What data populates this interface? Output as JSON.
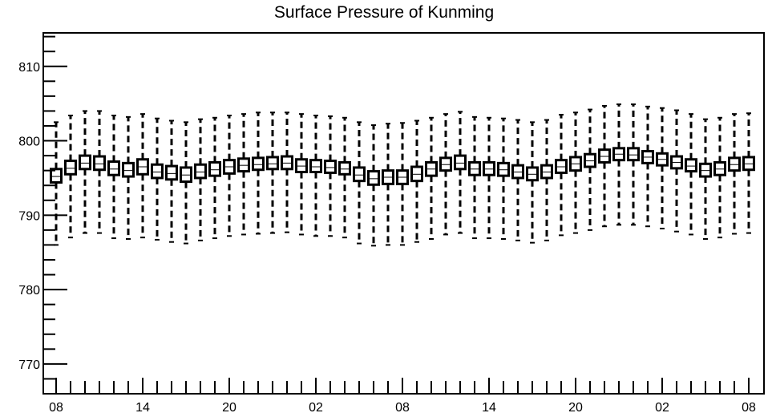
{
  "chart_data": {
    "type": "box",
    "title": "Surface Pressure of Kunming",
    "xlabel": "",
    "ylabel": "",
    "ylim": [
      766,
      814.5
    ],
    "y_ticks": [
      770,
      780,
      790,
      800,
      810
    ],
    "x_tick_labels": [
      "08",
      "14",
      "20",
      "02",
      "08",
      "14",
      "20",
      "02",
      "08"
    ],
    "x_tick_positions": [
      0,
      6,
      12,
      18,
      24,
      30,
      36,
      42,
      48
    ],
    "grid": false,
    "series": [
      {
        "boxes": [
          {
            "t": 0,
            "whisker_low": 786.0,
            "q1": 794.4,
            "median": 795.2,
            "q3": 796.2,
            "whisker_high": 802.5
          },
          {
            "t": 1,
            "whisker_low": 787.0,
            "q1": 795.5,
            "median": 796.3,
            "q3": 797.3,
            "whisker_high": 803.4
          },
          {
            "t": 2,
            "whisker_low": 787.6,
            "q1": 796.2,
            "median": 797.0,
            "q3": 798.0,
            "whisker_high": 804.0
          },
          {
            "t": 3,
            "whisker_low": 787.6,
            "q1": 796.1,
            "median": 796.9,
            "q3": 797.9,
            "whisker_high": 804.0
          },
          {
            "t": 4,
            "whisker_low": 786.9,
            "q1": 795.4,
            "median": 796.2,
            "q3": 797.2,
            "whisker_high": 803.4
          },
          {
            "t": 5,
            "whisker_low": 786.8,
            "q1": 795.2,
            "median": 796.0,
            "q3": 797.0,
            "whisker_high": 803.2
          },
          {
            "t": 6,
            "whisker_low": 787.0,
            "q1": 795.5,
            "median": 796.5,
            "q3": 797.5,
            "whisker_high": 803.6
          },
          {
            "t": 7,
            "whisker_low": 786.7,
            "q1": 795.0,
            "median": 795.8,
            "q3": 796.8,
            "whisker_high": 803.0
          },
          {
            "t": 8,
            "whisker_low": 786.4,
            "q1": 794.8,
            "median": 795.6,
            "q3": 796.6,
            "whisker_high": 802.7
          },
          {
            "t": 9,
            "whisker_low": 786.2,
            "q1": 794.5,
            "median": 795.4,
            "q3": 796.4,
            "whisker_high": 802.5
          },
          {
            "t": 10,
            "whisker_low": 786.6,
            "q1": 795.0,
            "median": 795.8,
            "q3": 796.8,
            "whisker_high": 802.9
          },
          {
            "t": 11,
            "whisker_low": 786.9,
            "q1": 795.3,
            "median": 796.1,
            "q3": 797.1,
            "whisker_high": 803.1
          },
          {
            "t": 12,
            "whisker_low": 787.2,
            "q1": 795.6,
            "median": 796.5,
            "q3": 797.4,
            "whisker_high": 803.4
          },
          {
            "t": 13,
            "whisker_low": 787.4,
            "q1": 795.9,
            "median": 796.7,
            "q3": 797.6,
            "whisker_high": 803.6
          },
          {
            "t": 14,
            "whisker_low": 787.5,
            "q1": 796.1,
            "median": 796.8,
            "q3": 797.7,
            "whisker_high": 803.8
          },
          {
            "t": 15,
            "whisker_low": 787.6,
            "q1": 796.2,
            "median": 796.9,
            "q3": 797.8,
            "whisker_high": 803.8
          },
          {
            "t": 16,
            "whisker_low": 787.7,
            "q1": 796.2,
            "median": 797.0,
            "q3": 797.9,
            "whisker_high": 803.8
          },
          {
            "t": 17,
            "whisker_low": 787.4,
            "q1": 795.8,
            "median": 796.6,
            "q3": 797.5,
            "whisker_high": 803.6
          },
          {
            "t": 18,
            "whisker_low": 787.2,
            "q1": 795.8,
            "median": 796.5,
            "q3": 797.4,
            "whisker_high": 803.4
          },
          {
            "t": 19,
            "whisker_low": 787.2,
            "q1": 795.7,
            "median": 796.4,
            "q3": 797.3,
            "whisker_high": 803.3
          },
          {
            "t": 20,
            "whisker_low": 787.0,
            "q1": 795.5,
            "median": 796.2,
            "q3": 797.1,
            "whisker_high": 803.1
          },
          {
            "t": 21,
            "whisker_low": 786.2,
            "q1": 794.6,
            "median": 795.4,
            "q3": 796.4,
            "whisker_high": 802.5
          },
          {
            "t": 22,
            "whisker_low": 785.9,
            "q1": 794.1,
            "median": 794.9,
            "q3": 795.9,
            "whisker_high": 802.1
          },
          {
            "t": 23,
            "whisker_low": 786.0,
            "q1": 794.2,
            "median": 795.1,
            "q3": 796.0,
            "whisker_high": 802.3
          },
          {
            "t": 24,
            "whisker_low": 786.0,
            "q1": 794.2,
            "median": 795.1,
            "q3": 796.0,
            "whisker_high": 802.4
          },
          {
            "t": 25,
            "whisker_low": 786.4,
            "q1": 794.6,
            "median": 795.5,
            "q3": 796.5,
            "whisker_high": 802.7
          },
          {
            "t": 26,
            "whisker_low": 786.8,
            "q1": 795.3,
            "median": 796.2,
            "q3": 797.1,
            "whisker_high": 803.1
          },
          {
            "t": 27,
            "whisker_low": 787.4,
            "q1": 796.0,
            "median": 796.8,
            "q3": 797.7,
            "whisker_high": 803.6
          },
          {
            "t": 28,
            "whisker_low": 787.6,
            "q1": 796.2,
            "median": 797.0,
            "q3": 798.0,
            "whisker_high": 803.9
          },
          {
            "t": 29,
            "whisker_low": 786.9,
            "q1": 795.4,
            "median": 796.2,
            "q3": 797.1,
            "whisker_high": 803.2
          },
          {
            "t": 30,
            "whisker_low": 786.9,
            "q1": 795.4,
            "median": 796.2,
            "q3": 797.1,
            "whisker_high": 803.1
          },
          {
            "t": 31,
            "whisker_low": 786.8,
            "q1": 795.3,
            "median": 796.1,
            "q3": 797.0,
            "whisker_high": 803.0
          },
          {
            "t": 32,
            "whisker_low": 786.6,
            "q1": 795.0,
            "median": 795.8,
            "q3": 796.7,
            "whisker_high": 802.8
          },
          {
            "t": 33,
            "whisker_low": 786.3,
            "q1": 794.7,
            "median": 795.5,
            "q3": 796.4,
            "whisker_high": 802.5
          },
          {
            "t": 34,
            "whisker_low": 786.6,
            "q1": 795.0,
            "median": 795.8,
            "q3": 796.7,
            "whisker_high": 802.8
          },
          {
            "t": 35,
            "whisker_low": 787.3,
            "q1": 795.7,
            "median": 796.5,
            "q3": 797.4,
            "whisker_high": 803.5
          },
          {
            "t": 36,
            "whisker_low": 787.6,
            "q1": 796.0,
            "median": 796.9,
            "q3": 797.8,
            "whisker_high": 803.8
          },
          {
            "t": 37,
            "whisker_low": 788.0,
            "q1": 796.5,
            "median": 797.3,
            "q3": 798.2,
            "whisker_high": 804.2
          },
          {
            "t": 38,
            "whisker_low": 788.5,
            "q1": 797.1,
            "median": 797.9,
            "q3": 798.8,
            "whisker_high": 804.7
          },
          {
            "t": 39,
            "whisker_low": 788.7,
            "q1": 797.4,
            "median": 798.2,
            "q3": 799.0,
            "whisker_high": 804.9
          },
          {
            "t": 40,
            "whisker_low": 788.7,
            "q1": 797.4,
            "median": 798.1,
            "q3": 799.0,
            "whisker_high": 804.9
          },
          {
            "t": 41,
            "whisker_low": 788.5,
            "q1": 797.0,
            "median": 797.8,
            "q3": 798.6,
            "whisker_high": 804.6
          },
          {
            "t": 42,
            "whisker_low": 788.2,
            "q1": 796.7,
            "median": 797.5,
            "q3": 798.3,
            "whisker_high": 804.4
          },
          {
            "t": 43,
            "whisker_low": 787.8,
            "q1": 796.3,
            "median": 797.1,
            "q3": 797.9,
            "whisker_high": 804.1
          },
          {
            "t": 44,
            "whisker_low": 787.4,
            "q1": 795.9,
            "median": 796.6,
            "q3": 797.5,
            "whisker_high": 803.6
          },
          {
            "t": 45,
            "whisker_low": 786.8,
            "q1": 795.2,
            "median": 796.0,
            "q3": 796.9,
            "whisker_high": 802.9
          },
          {
            "t": 46,
            "whisker_low": 787.0,
            "q1": 795.4,
            "median": 796.2,
            "q3": 797.1,
            "whisker_high": 803.1
          },
          {
            "t": 47,
            "whisker_low": 787.5,
            "q1": 796.0,
            "median": 796.8,
            "q3": 797.7,
            "whisker_high": 803.6
          },
          {
            "t": 48,
            "whisker_low": 787.6,
            "q1": 796.1,
            "median": 796.9,
            "q3": 797.8,
            "whisker_high": 803.7
          }
        ]
      }
    ]
  },
  "colors": {
    "frame": "#000000",
    "box_fill": "#ffffff",
    "box_stroke": "#000000"
  }
}
